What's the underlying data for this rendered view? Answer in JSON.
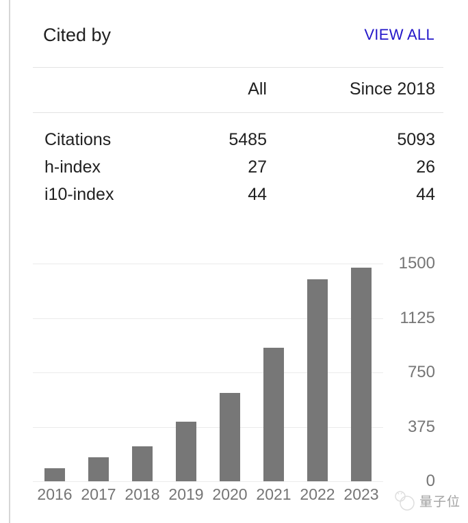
{
  "header": {
    "title": "Cited by",
    "view_all_label": "VIEW ALL"
  },
  "stats_table": {
    "columns": [
      "All",
      "Since 2018"
    ],
    "rows": [
      {
        "label": "Citations",
        "all": "5485",
        "since_2018": "5093"
      },
      {
        "label": "h-index",
        "all": "27",
        "since_2018": "26"
      },
      {
        "label": "i10-index",
        "all": "44",
        "since_2018": "44"
      }
    ]
  },
  "chart_data": {
    "type": "bar",
    "categories": [
      "2016",
      "2017",
      "2018",
      "2019",
      "2020",
      "2021",
      "2022",
      "2023"
    ],
    "values": [
      90,
      165,
      240,
      410,
      610,
      920,
      1390,
      1470
    ],
    "title": "",
    "xlabel": "",
    "ylabel": "",
    "ylim": [
      0,
      1500
    ],
    "yticks": [
      0,
      375,
      750,
      1125,
      1500
    ],
    "grid": true,
    "legend": "none",
    "bar_color": "#777777",
    "axis_label_color": "#757575"
  },
  "watermark": {
    "logo": "qbitai-cat-logo",
    "text": "量子位"
  },
  "colors": {
    "link_blue": "#2317c9",
    "text_dark": "#212121",
    "bar_gray": "#777777",
    "axis_gray": "#757575",
    "divider": "#e2e2e2",
    "left_border": "#d6d6d6",
    "gridline": "#ebebeb",
    "watermark_gray": "#a2a2a2"
  }
}
